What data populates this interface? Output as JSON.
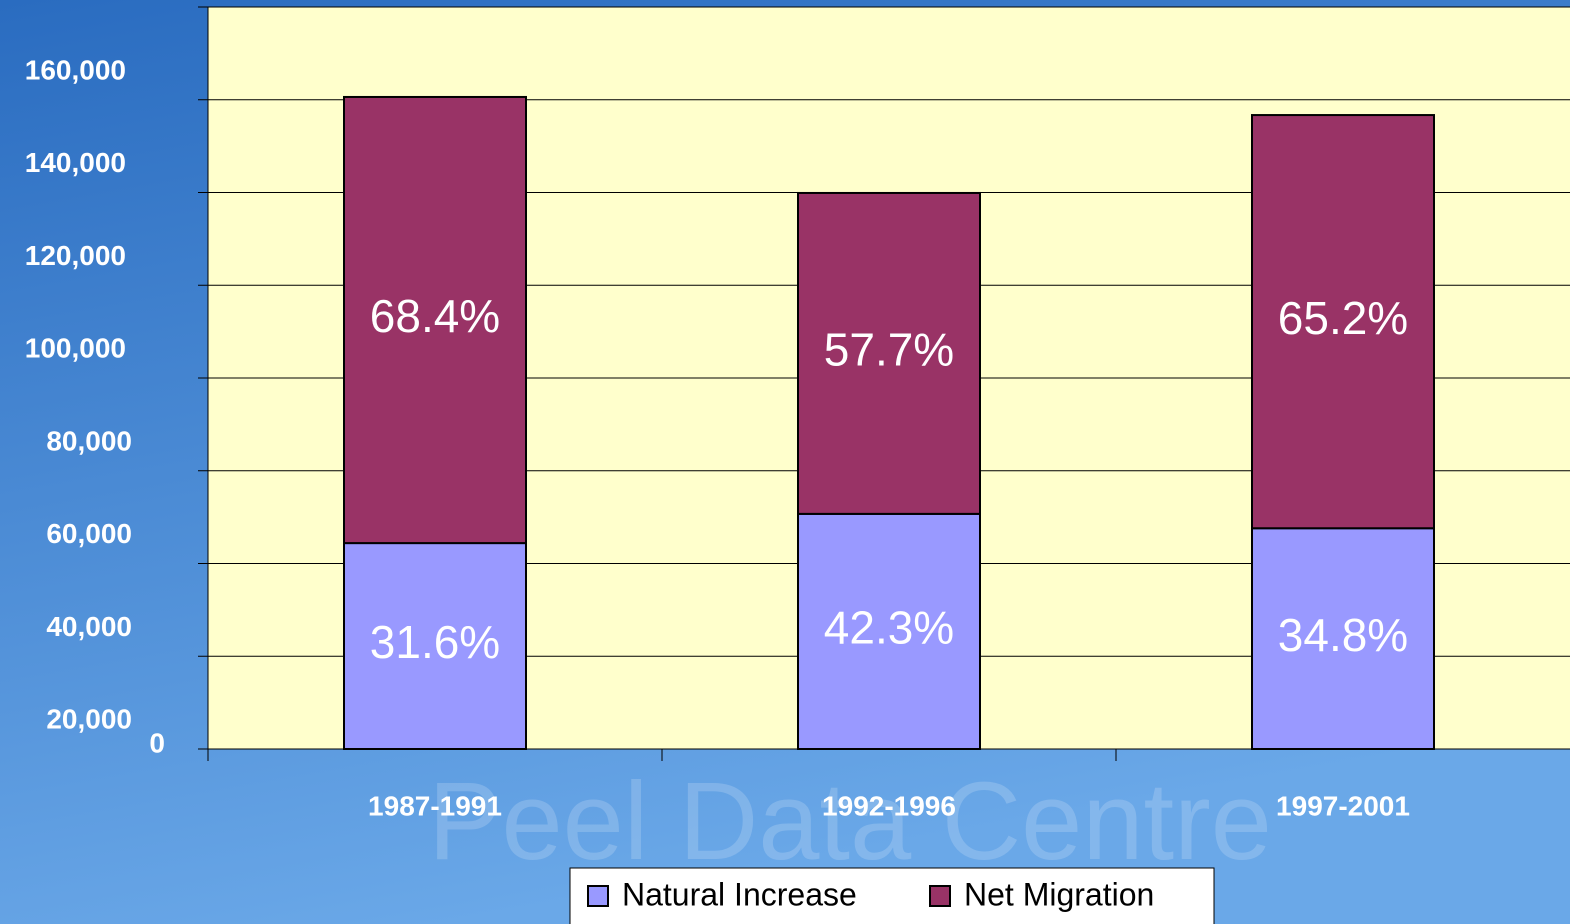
{
  "chart_data": {
    "type": "stacked_bar",
    "watermark": "Peel Data Centre",
    "categories": [
      "1987-1991",
      "1992-1996",
      "1997-2001"
    ],
    "series": [
      {
        "name": "Natural Increase",
        "color": "#9999ff",
        "values": [
          44400,
          50700,
          47600
        ],
        "labels": [
          "31.6%",
          "42.3%",
          "34.8%"
        ]
      },
      {
        "name": "Net Migration",
        "color": "#993366",
        "values": [
          96200,
          69200,
          89100
        ],
        "labels": [
          "68.4%",
          "57.7%",
          "65.2%"
        ]
      }
    ],
    "ylim": [
      0,
      160000
    ],
    "yticks": [
      0,
      {
        "value": 20000,
        "label": "20,000"
      },
      {
        "value": 40000,
        "label": "40,000"
      },
      {
        "value": 60000,
        "label": "60,000"
      },
      {
        "value": 80000,
        "label": "80,000"
      },
      {
        "value": 100000,
        "label": "100,000"
      },
      {
        "value": 120000,
        "label": "120,000"
      },
      {
        "value": 140000,
        "label": "140,000"
      },
      {
        "value": 160000,
        "label": "160,000"
      }
    ],
    "grid": true,
    "legend": "bottom"
  }
}
